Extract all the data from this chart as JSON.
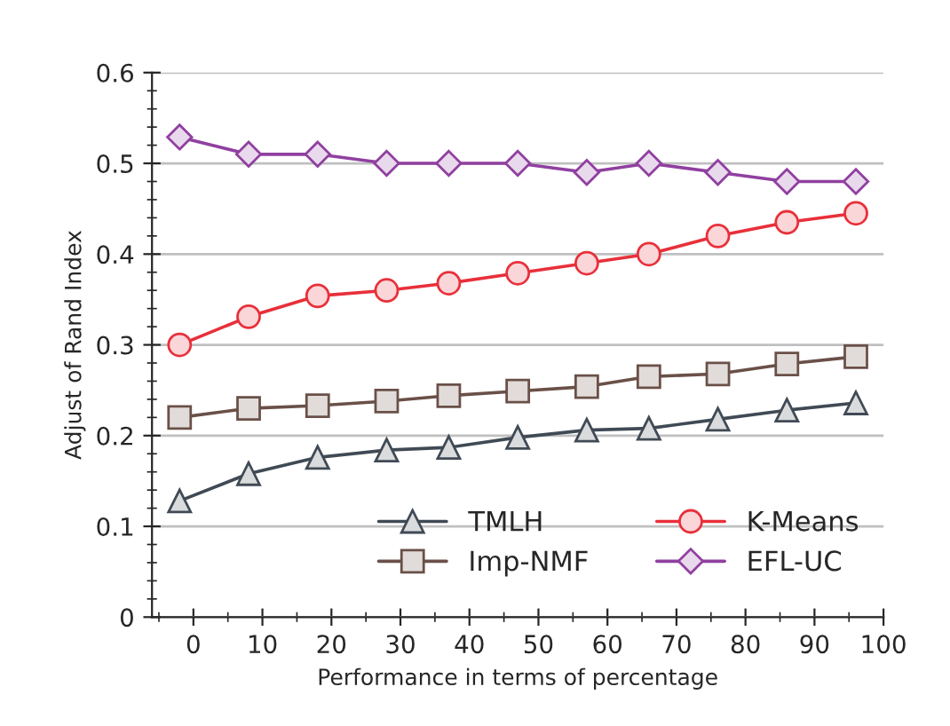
{
  "chart_data": {
    "type": "line",
    "xlabel": "Performance in terms of percentage",
    "ylabel": "Adjust of Rand Index",
    "x": [
      -2,
      8,
      18,
      28,
      37,
      47,
      57,
      66,
      76,
      86,
      96
    ],
    "xlim": [
      -6,
      100
    ],
    "xticks": [
      0,
      10,
      20,
      30,
      40,
      50,
      60,
      70,
      80,
      90,
      100
    ],
    "ylim": [
      0,
      0.6
    ],
    "yticks": [
      0,
      0.1,
      0.2,
      0.3,
      0.4,
      0.5,
      0.6
    ],
    "grid": "y",
    "legend": "bottom right",
    "line_style": "solid",
    "series": [
      {
        "name": "TMLH",
        "color": "#404a55",
        "marker": "triangle",
        "values": [
          0.128,
          0.158,
          0.176,
          0.184,
          0.187,
          0.198,
          0.206,
          0.208,
          0.218,
          0.228,
          0.236
        ]
      },
      {
        "name": "Imp-NMF",
        "color": "#6a5048",
        "marker": "square",
        "values": [
          0.22,
          0.23,
          0.233,
          0.238,
          0.244,
          0.249,
          0.254,
          0.265,
          0.268,
          0.279,
          0.287
        ]
      },
      {
        "name": "K-Means",
        "color": "#e8303a",
        "marker": "circle",
        "values": [
          0.3,
          0.331,
          0.354,
          0.36,
          0.368,
          0.379,
          0.39,
          0.4,
          0.42,
          0.435,
          0.445
        ]
      },
      {
        "name": "EFL-UC",
        "color": "#9040a0",
        "marker": "diamond",
        "values": [
          0.529,
          0.51,
          0.51,
          0.5,
          0.5,
          0.5,
          0.49,
          0.5,
          0.49,
          0.48,
          0.48
        ]
      }
    ]
  }
}
